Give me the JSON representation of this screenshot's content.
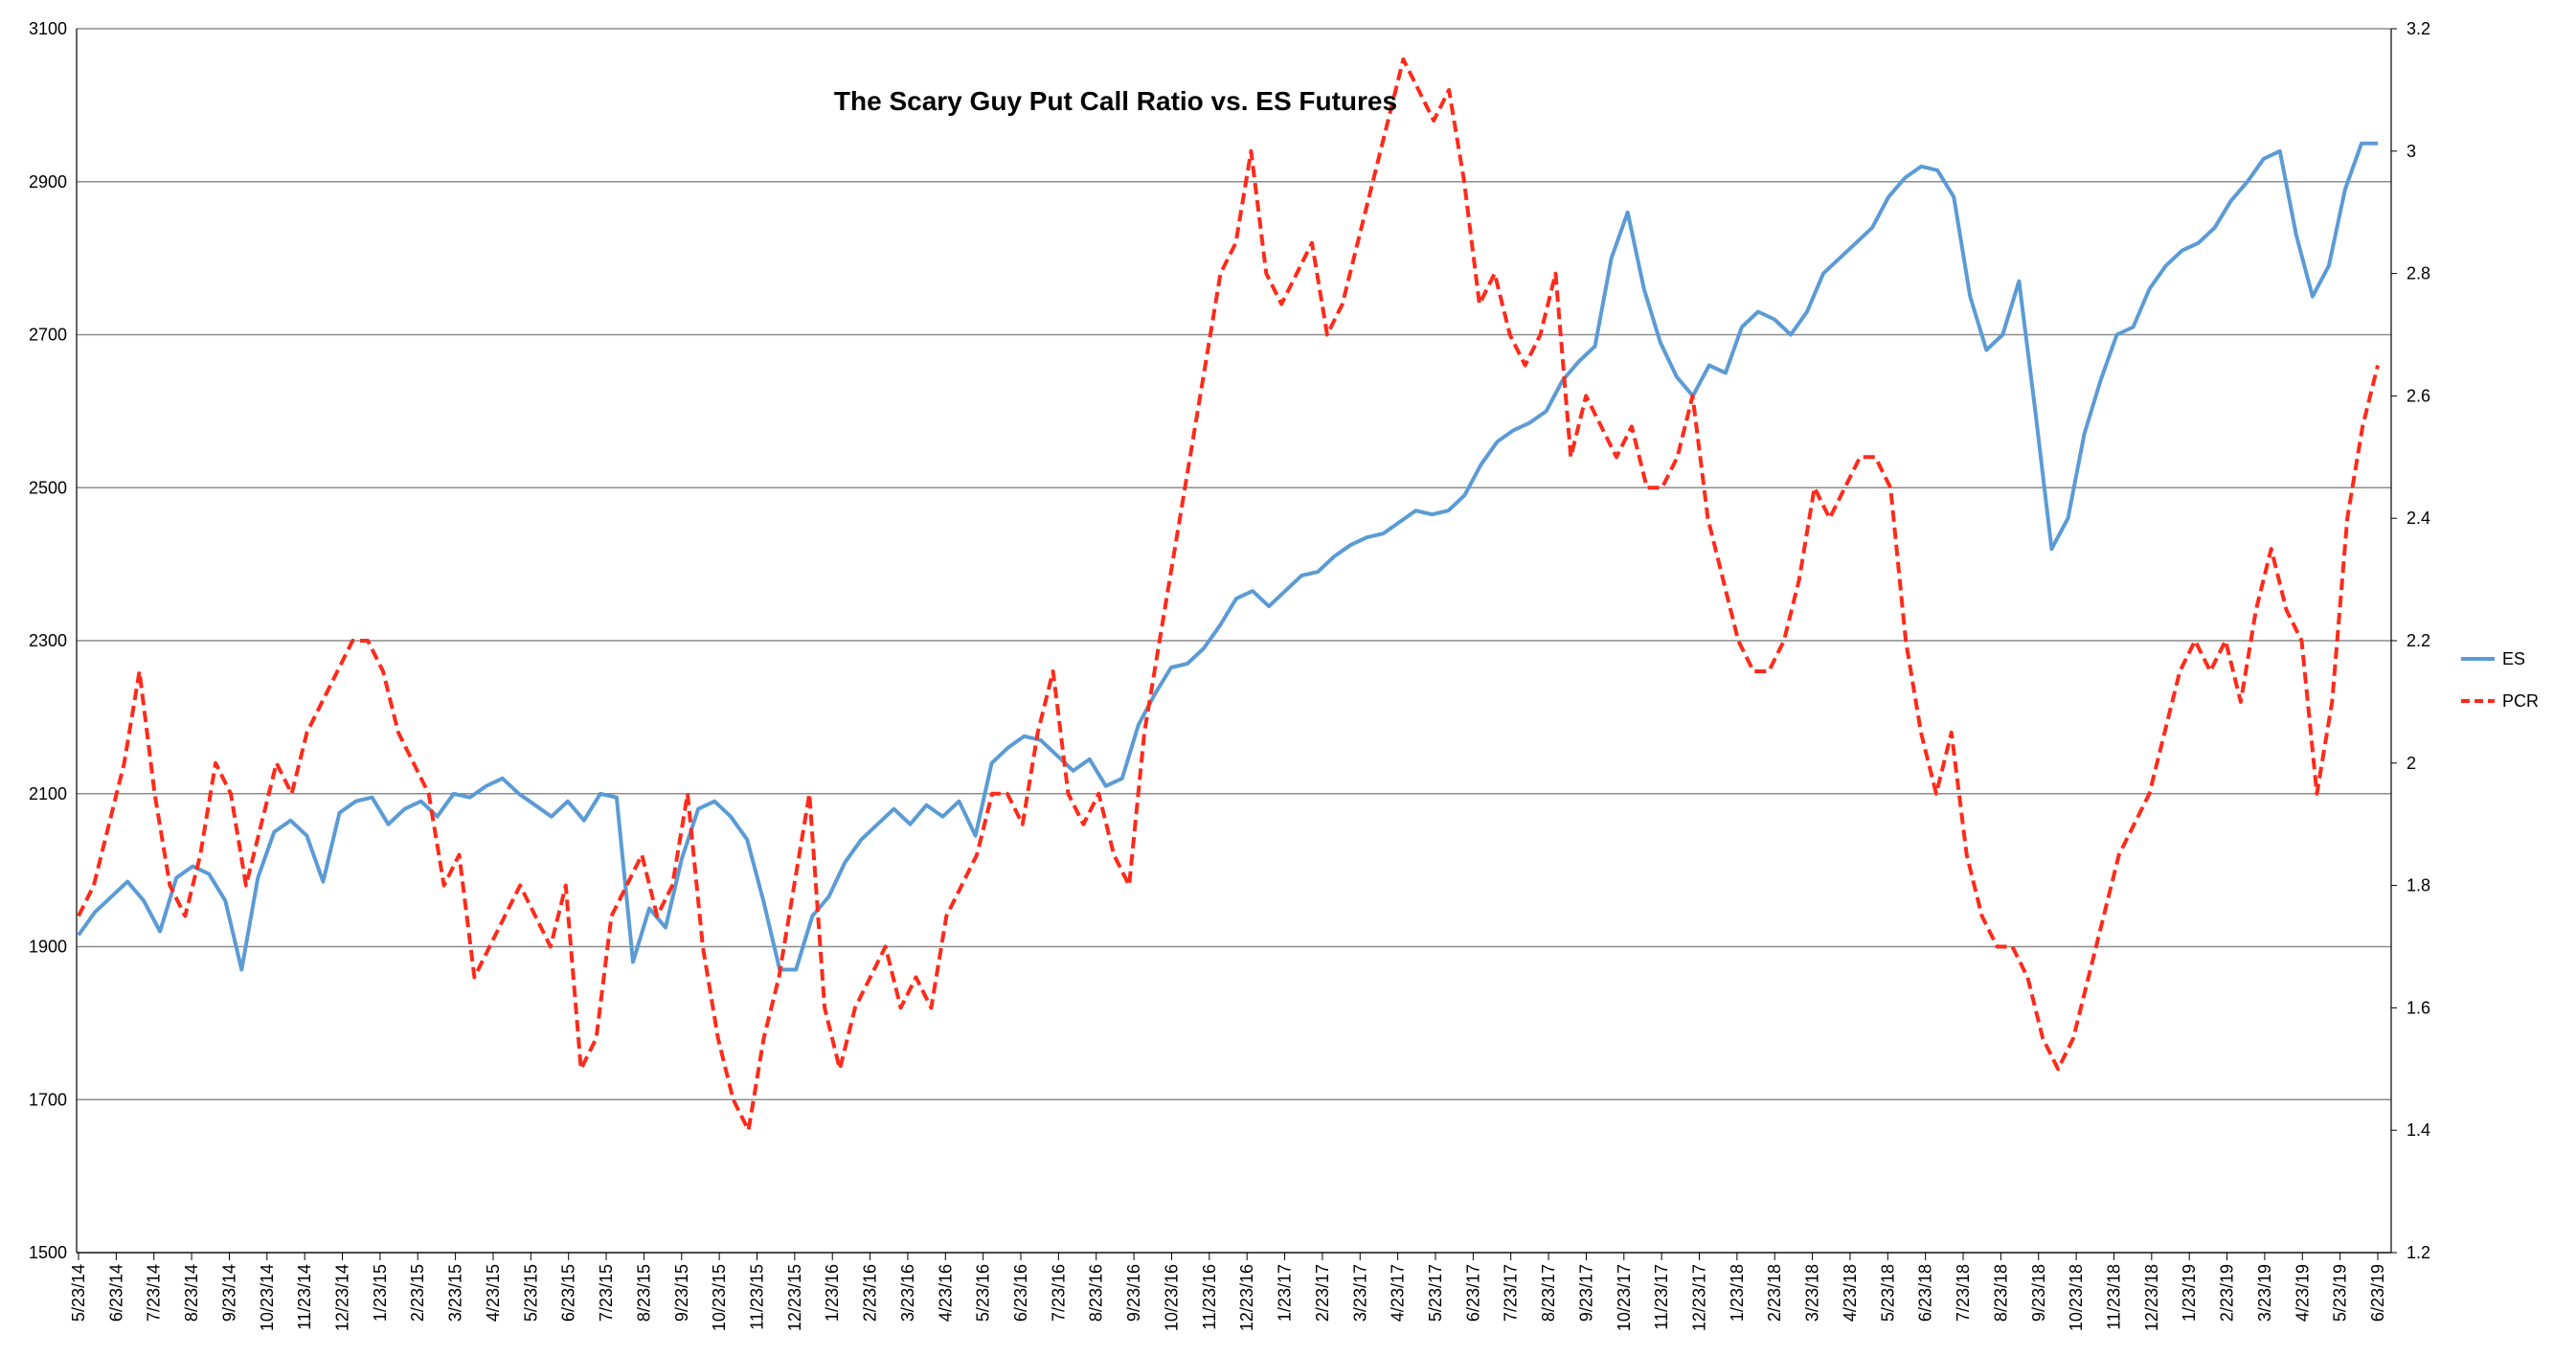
{
  "chart_data": {
    "type": "line",
    "title": "The Scary Guy Put Call Ratio vs. ES Futures",
    "y_left": {
      "min": 1500,
      "max": 3100,
      "ticks": [
        1500,
        1700,
        1900,
        2100,
        2300,
        2500,
        2700,
        2900,
        3100
      ]
    },
    "y_right": {
      "min": 1.2,
      "max": 3.2,
      "ticks": [
        "1.2",
        "1.4",
        "1.6",
        "1.8",
        "2",
        "2.2",
        "2.4",
        "2.6",
        "2.8",
        "3",
        "3.2"
      ]
    },
    "x_ticks": [
      "5/23/14",
      "6/23/14",
      "7/23/14",
      "8/23/14",
      "9/23/14",
      "10/23/14",
      "11/23/14",
      "12/23/14",
      "1/23/15",
      "2/23/15",
      "3/23/15",
      "4/23/15",
      "5/23/15",
      "6/23/15",
      "7/23/15",
      "8/23/15",
      "9/23/15",
      "10/23/15",
      "11/23/15",
      "12/23/15",
      "1/23/16",
      "2/23/16",
      "3/23/16",
      "4/23/16",
      "5/23/16",
      "6/23/16",
      "7/23/16",
      "8/23/16",
      "9/23/16",
      "10/23/16",
      "11/23/16",
      "12/23/16",
      "1/23/17",
      "2/23/17",
      "3/23/17",
      "4/23/17",
      "5/23/17",
      "6/23/17",
      "7/23/17",
      "8/23/17",
      "9/23/17",
      "10/23/17",
      "11/23/17",
      "12/23/17",
      "1/23/18",
      "2/23/18",
      "3/23/18",
      "4/23/18",
      "5/23/18",
      "6/23/18",
      "7/23/18",
      "8/23/18",
      "9/23/18",
      "10/23/18",
      "11/23/18",
      "12/23/18",
      "1/23/19",
      "2/23/19",
      "3/23/19",
      "4/23/19",
      "5/23/19",
      "6/23/19"
    ],
    "legend_position": "right",
    "grid": true,
    "series": [
      {
        "name": "ES",
        "axis": "left",
        "color": "#5b9bd5",
        "style": "solid",
        "values": [
          1915,
          1945,
          1965,
          1985,
          1960,
          1920,
          1990,
          2005,
          1995,
          1960,
          1870,
          1990,
          2050,
          2065,
          2045,
          1985,
          2075,
          2090,
          2095,
          2060,
          2080,
          2090,
          2070,
          2100,
          2095,
          2110,
          2120,
          2100,
          2085,
          2070,
          2090,
          2065,
          2100,
          2095,
          1880,
          1950,
          1925,
          2015,
          2080,
          2090,
          2070,
          2040,
          1960,
          1870,
          1870,
          1940,
          1965,
          2010,
          2040,
          2060,
          2080,
          2060,
          2085,
          2070,
          2090,
          2045,
          2140,
          2160,
          2175,
          2170,
          2150,
          2130,
          2145,
          2110,
          2120,
          2190,
          2230,
          2265,
          2270,
          2290,
          2320,
          2355,
          2365,
          2345,
          2365,
          2385,
          2390,
          2410,
          2425,
          2435,
          2440,
          2455,
          2470,
          2465,
          2470,
          2490,
          2530,
          2560,
          2575,
          2585,
          2600,
          2640,
          2665,
          2685,
          2800,
          2860,
          2760,
          2690,
          2645,
          2620,
          2660,
          2650,
          2710,
          2730,
          2720,
          2700,
          2730,
          2780,
          2800,
          2820,
          2840,
          2880,
          2905,
          2920,
          2915,
          2880,
          2750,
          2680,
          2700,
          2770,
          2600,
          2420,
          2460,
          2570,
          2640,
          2700,
          2710,
          2760,
          2790,
          2810,
          2820,
          2840,
          2875,
          2900,
          2930,
          2940,
          2830,
          2750,
          2790,
          2890,
          2950,
          2950
        ]
      },
      {
        "name": "PCR",
        "axis": "right",
        "color": "#ff2a1a",
        "style": "dashed",
        "values": [
          1.75,
          1.8,
          1.9,
          2.0,
          2.15,
          1.95,
          1.8,
          1.75,
          1.85,
          2.0,
          1.95,
          1.8,
          1.9,
          2.0,
          1.95,
          2.05,
          2.1,
          2.15,
          2.2,
          2.2,
          2.15,
          2.05,
          2.0,
          1.95,
          1.8,
          1.85,
          1.65,
          1.7,
          1.75,
          1.8,
          1.75,
          1.7,
          1.8,
          1.5,
          1.55,
          1.75,
          1.8,
          1.85,
          1.75,
          1.8,
          1.95,
          1.7,
          1.55,
          1.45,
          1.4,
          1.55,
          1.65,
          1.8,
          1.95,
          1.6,
          1.5,
          1.6,
          1.65,
          1.7,
          1.6,
          1.65,
          1.6,
          1.75,
          1.8,
          1.85,
          1.95,
          1.95,
          1.9,
          2.05,
          2.15,
          1.95,
          1.9,
          1.95,
          1.85,
          1.8,
          2.05,
          2.2,
          2.35,
          2.5,
          2.65,
          2.8,
          2.85,
          3.0,
          2.8,
          2.75,
          2.8,
          2.85,
          2.7,
          2.75,
          2.85,
          2.95,
          3.05,
          3.15,
          3.1,
          3.05,
          3.1,
          2.95,
          2.75,
          2.8,
          2.7,
          2.65,
          2.7,
          2.8,
          2.5,
          2.6,
          2.55,
          2.5,
          2.55,
          2.45,
          2.45,
          2.5,
          2.6,
          2.4,
          2.3,
          2.2,
          2.15,
          2.15,
          2.2,
          2.3,
          2.45,
          2.4,
          2.45,
          2.5,
          2.5,
          2.45,
          2.2,
          2.05,
          1.95,
          2.05,
          1.85,
          1.75,
          1.7,
          1.7,
          1.65,
          1.55,
          1.5,
          1.55,
          1.65,
          1.75,
          1.85,
          1.9,
          1.95,
          2.05,
          2.15,
          2.2,
          2.15,
          2.2,
          2.1,
          2.25,
          2.35,
          2.25,
          2.2,
          1.95,
          2.1,
          2.4,
          2.55,
          2.65
        ]
      }
    ]
  }
}
